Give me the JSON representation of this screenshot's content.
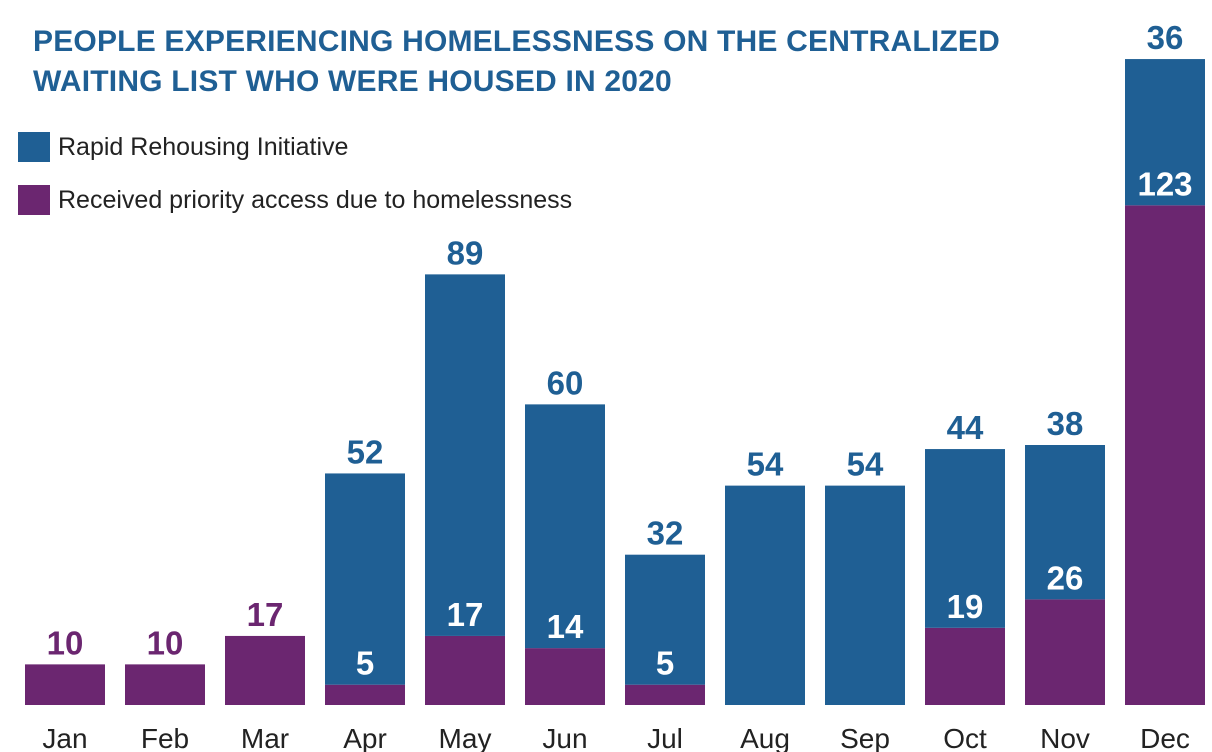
{
  "chart_data": {
    "type": "stacked_bar",
    "title": "PEOPLE EXPERIENCING HOMELESSNESS ON THE CENTRALIZED WAITING LIST WHO WERE HOUSED IN 2020",
    "categories": [
      "Jan",
      "Feb",
      "Mar",
      "Apr",
      "May",
      "Jun",
      "Jul",
      "Aug",
      "Sep",
      "Oct",
      "Nov",
      "Dec"
    ],
    "series": [
      {
        "name": "Received priority access due to homelessness",
        "color": "#6b2670",
        "values": [
          10,
          10,
          17,
          5,
          17,
          14,
          5,
          null,
          null,
          19,
          26,
          123
        ]
      },
      {
        "name": "Rapid Rehousing Initiative",
        "color": "#1f5f94",
        "values": [
          null,
          null,
          null,
          52,
          89,
          60,
          32,
          54,
          54,
          44,
          38,
          36
        ]
      }
    ],
    "ylim": [
      0,
      160
    ]
  }
}
